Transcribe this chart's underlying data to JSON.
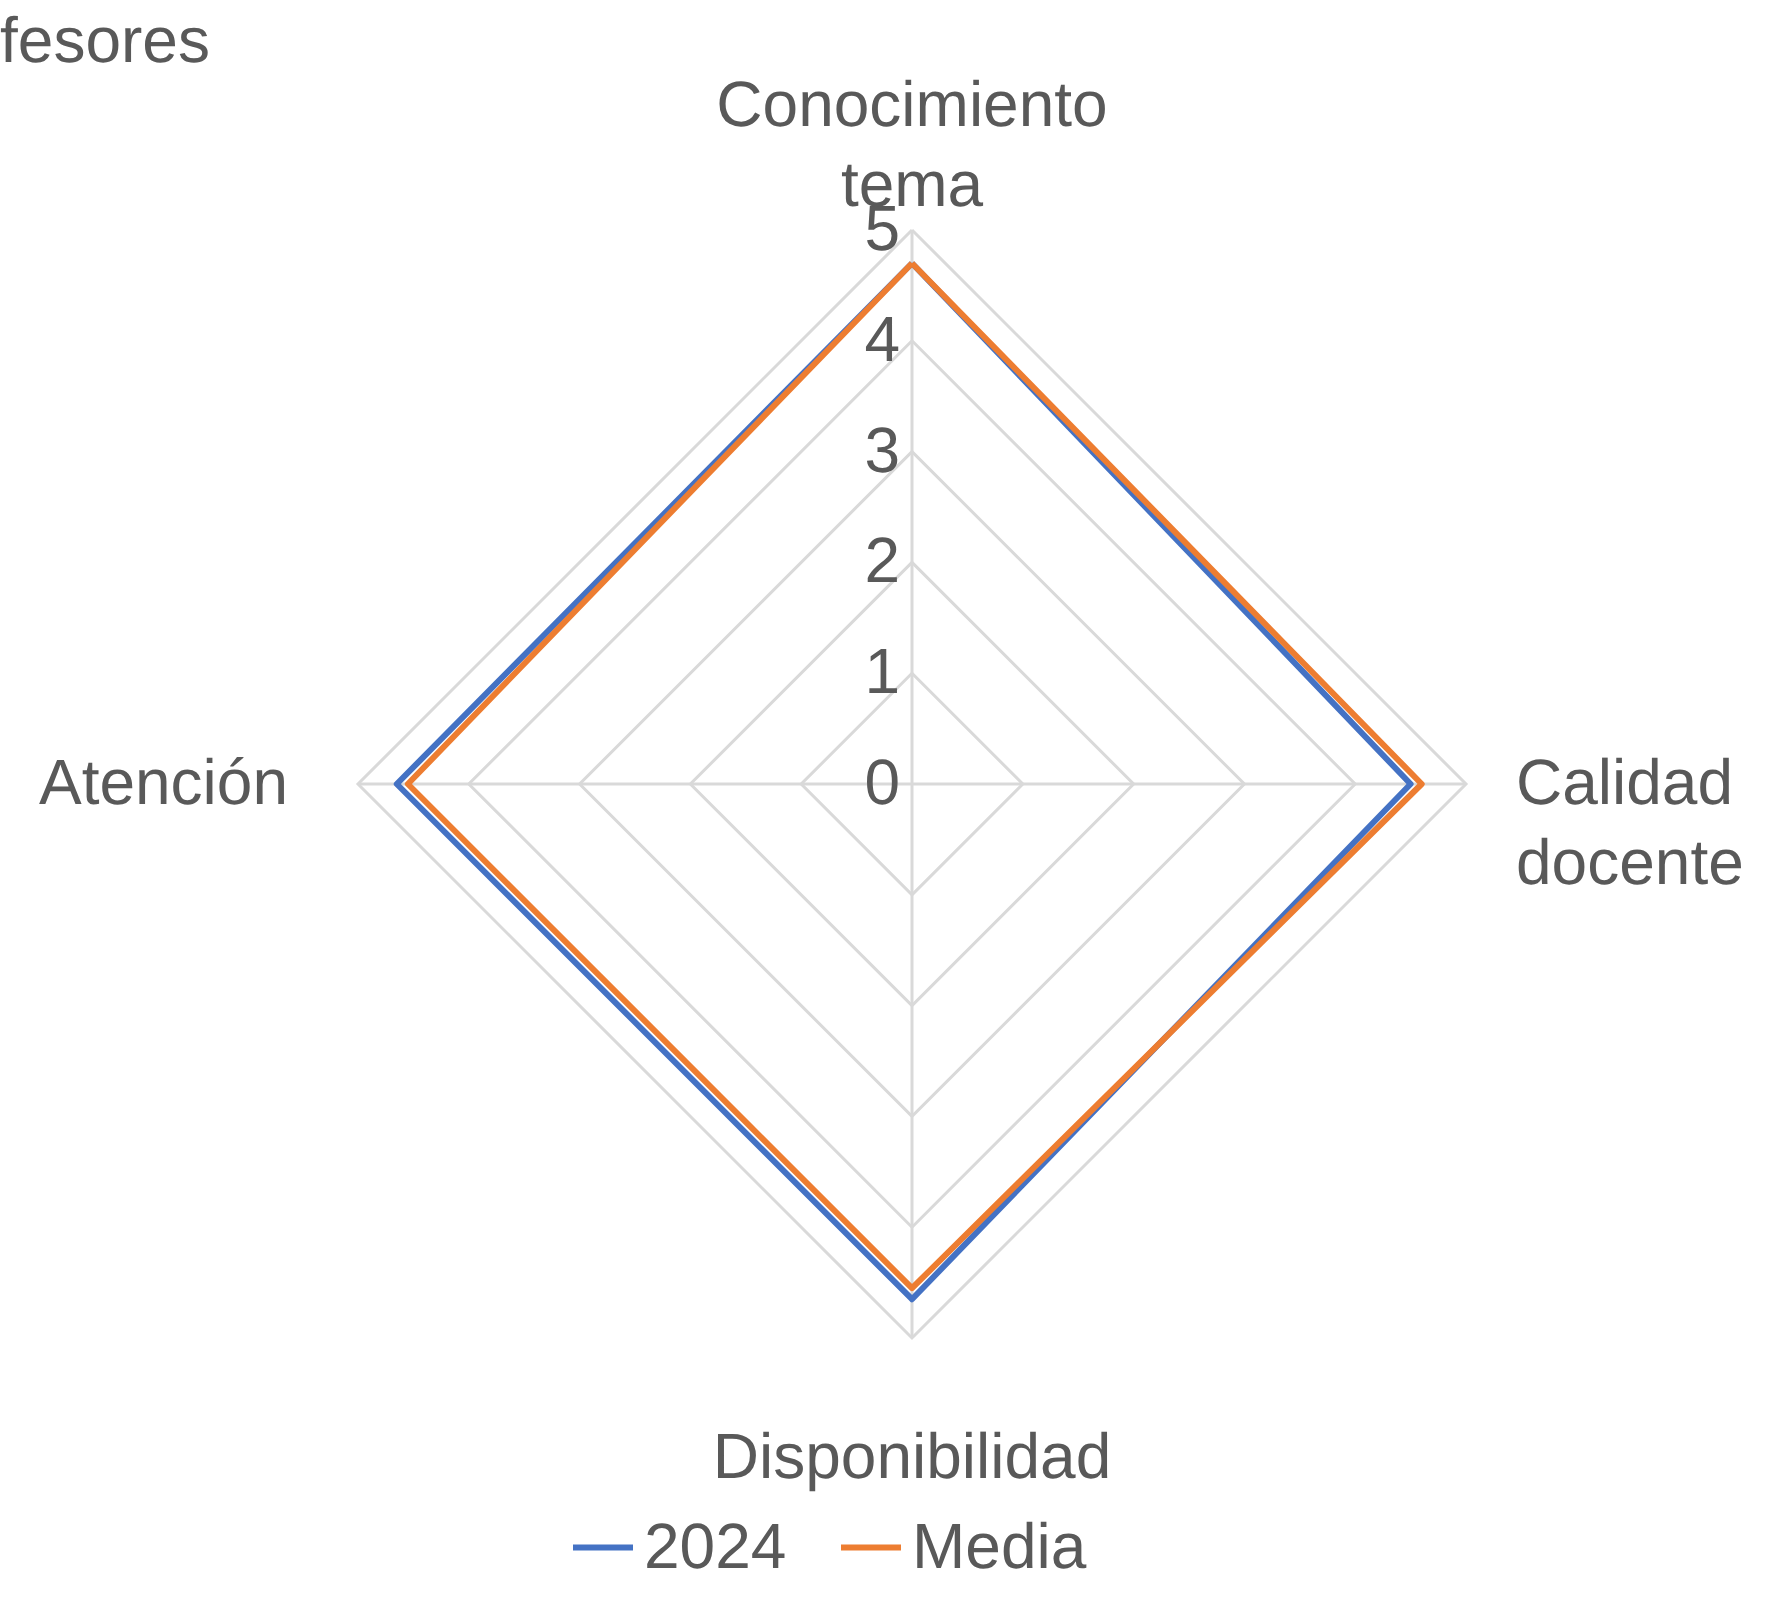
{
  "chart_data": {
    "type": "radar",
    "title": "fesores",
    "categories": [
      "Conocimiento tema",
      "Calidad docente",
      "Disponibilidad",
      "Atención"
    ],
    "series": [
      {
        "name": "2024",
        "color": "#4472c4",
        "values": [
          4.7,
          4.5,
          4.65,
          4.65
        ]
      },
      {
        "name": "Media",
        "color": "#ed7d31",
        "values": [
          4.7,
          4.6,
          4.55,
          4.55
        ]
      }
    ],
    "ylim": [
      0,
      5
    ],
    "yticks": [
      0,
      1,
      2,
      3,
      4,
      5
    ],
    "grid": true,
    "legend": "bottom"
  }
}
